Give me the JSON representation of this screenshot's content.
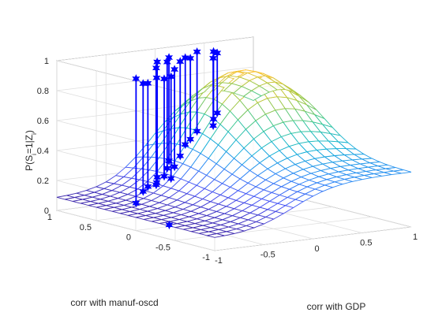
{
  "chart_data": {
    "type": "surface3d",
    "title": "",
    "xlabel": "corr with GDP",
    "ylabel": "corr with manuf-oscd",
    "zlabel_base": "P(S",
    "zlabel_sub1": "i",
    "zlabel_mid": "=1|Z",
    "zlabel_sub2": "i",
    "zlabel_end": ")",
    "xlim": [
      -1,
      1
    ],
    "ylim": [
      -1,
      1
    ],
    "zlim": [
      0,
      1
    ],
    "xticks": [
      -1,
      -0.5,
      0,
      0.5,
      1
    ],
    "yticks": [
      -1,
      -0.5,
      0,
      0.5,
      1
    ],
    "zticks": [
      0,
      0.2,
      0.4,
      0.6,
      0.8,
      1
    ],
    "xtick_labels": [
      "-1",
      "-0.5",
      "0",
      "0.5",
      "1"
    ],
    "ytick_labels": [
      "-1",
      "-0.5",
      "0",
      "0.5",
      "1"
    ],
    "ztick_labels": [
      "0",
      "0.2",
      "0.4",
      "0.6",
      "0.8",
      "1"
    ],
    "grid": true,
    "colormap": "parula",
    "stem_color": "#0000ff",
    "surface_grid": 20,
    "surface_model": {
      "description": "logistic in corr with GDP times gaussian bump",
      "floor": 0.08,
      "amplitude": 0.82,
      "logistic_center_x": -0.2,
      "logistic_steepness": 4.5,
      "bump_center_x": 0.5,
      "bump_center_y": 0.55,
      "bump_width_x": 0.75,
      "bump_width_y": 0.65
    },
    "stems": [
      {
        "x": -0.74,
        "y": 0.32,
        "z_base": 0.12,
        "z_top": 0.95
      },
      {
        "x": -0.7,
        "y": 0.22,
        "z_base": 0.24,
        "z_top": 0.93
      },
      {
        "x": -0.62,
        "y": 0.38,
        "z_base": 0.18,
        "z_top": 0.9
      },
      {
        "x": -0.55,
        "y": 0.2,
        "z_base": 0.3,
        "z_top": 0.95
      },
      {
        "x": -0.45,
        "y": 0.42,
        "z_base": 0.22,
        "z_top": 0.92
      },
      {
        "x": -0.4,
        "y": 0.3,
        "z_base": 0.26,
        "z_top": 0.94
      },
      {
        "x": -0.35,
        "y": 0.55,
        "z_base": 0.18,
        "z_top": 0.96
      },
      {
        "x": -0.3,
        "y": 0.6,
        "z_base": 0.22,
        "z_top": 0.99
      },
      {
        "x": -0.22,
        "y": 0.48,
        "z_base": 0.3,
        "z_top": 0.95
      },
      {
        "x": -0.15,
        "y": 0.66,
        "z_base": 0.26,
        "z_top": 0.97
      },
      {
        "x": -0.1,
        "y": 0.7,
        "z_base": 0.3,
        "z_top": 0.99
      },
      {
        "x": -0.05,
        "y": 0.62,
        "z_base": 0.34,
        "z_top": 0.97
      },
      {
        "x": 0.05,
        "y": 0.68,
        "z_base": 0.4,
        "z_top": 0.98
      },
      {
        "x": 0.15,
        "y": 0.74,
        "z_base": 0.42,
        "z_top": 0.96
      },
      {
        "x": 0.25,
        "y": 0.78,
        "z_base": 0.46,
        "z_top": 0.99
      },
      {
        "x": 0.35,
        "y": 0.7,
        "z_base": 0.5,
        "z_top": 0.95
      },
      {
        "x": 0.45,
        "y": 0.82,
        "z_base": 0.52,
        "z_top": 0.97
      },
      {
        "x": 0.52,
        "y": 0.86,
        "z_base": 0.55,
        "z_top": 0.95
      },
      {
        "x": -0.82,
        "y": -0.2,
        "z_base": 0.05,
        "z_top": 0.05
      }
    ]
  }
}
